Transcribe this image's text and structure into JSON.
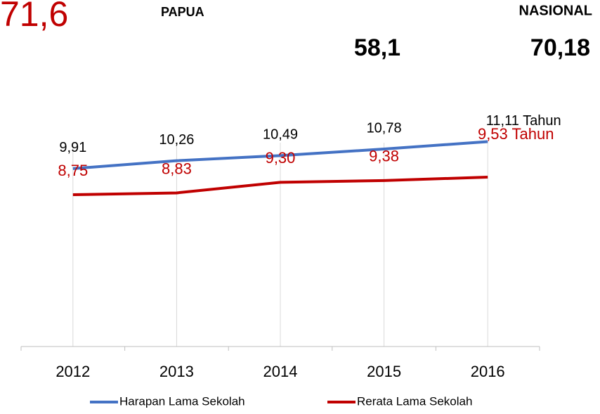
{
  "header": {
    "big_value": "71,6",
    "left_label": "PAPUA",
    "right_label": "NASIONAL",
    "left_value": "58,1",
    "right_value": "70,18"
  },
  "chart_data": {
    "type": "line",
    "categories": [
      "2012",
      "2013",
      "2014",
      "2015",
      "2016"
    ],
    "series": [
      {
        "name": "Harapan Lama Sekolah",
        "color": "#4472c4",
        "values": [
          9.91,
          10.26,
          10.49,
          10.78,
          11.11
        ],
        "value_labels": [
          "9,91",
          "10,26",
          "10,49",
          "10,78",
          "11,11 Tahun"
        ]
      },
      {
        "name": "Rerata Lama Sekolah",
        "color": "#c00000",
        "values": [
          8.75,
          8.83,
          9.3,
          9.38,
          9.53
        ],
        "value_labels": [
          "8,75",
          "8,83",
          "9,30",
          "9,38",
          "9,53 Tahun"
        ]
      }
    ],
    "ylim": [
      2,
      12
    ],
    "legend": "bottom"
  }
}
